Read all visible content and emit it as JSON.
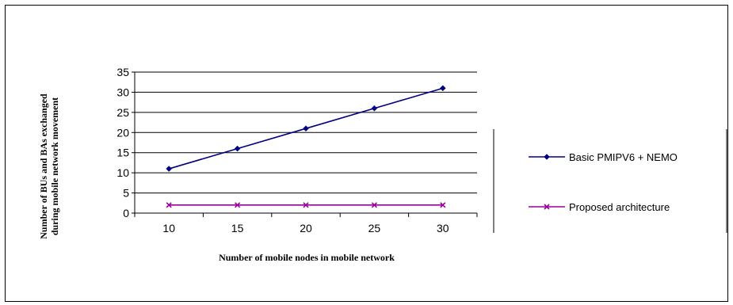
{
  "chart_data": {
    "type": "line",
    "title": "",
    "xlabel": "Number of mobile nodes in mobile network",
    "ylabel_lines": [
      "Number of BUs and BAs exchanged",
      "during mobile network movement"
    ],
    "categories": [
      "10",
      "15",
      "20",
      "25",
      "30"
    ],
    "ylim": [
      0,
      35
    ],
    "yticks": [
      0,
      5,
      10,
      15,
      20,
      25,
      30,
      35
    ],
    "grid": true,
    "legend_position": "right",
    "series": [
      {
        "name": "Basic PMIPV6 + NEMO",
        "values": [
          11,
          16,
          21,
          26,
          31
        ],
        "color": "#000080",
        "marker": "diamond"
      },
      {
        "name": "Proposed architecture",
        "values": [
          2,
          2,
          2,
          2,
          2
        ],
        "color": "#990099",
        "marker": "x"
      }
    ]
  }
}
